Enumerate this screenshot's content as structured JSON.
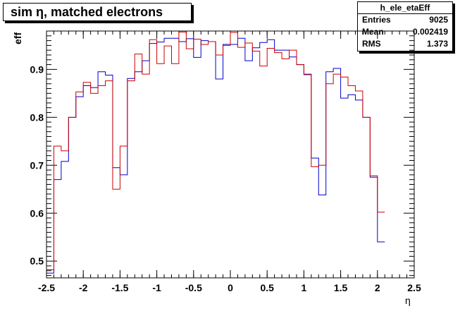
{
  "title": "sim η,  matched electrons",
  "stats": {
    "name": "h_ele_etaEff",
    "rows": [
      {
        "label": "Entries",
        "value": "9025"
      },
      {
        "label": "Mean",
        "value": "0.002419"
      },
      {
        "label": "RMS",
        "value": "1.373"
      }
    ]
  },
  "chart_data": {
    "type": "line",
    "style": "step",
    "xlabel": "η",
    "ylabel": "eff",
    "xlim": [
      -2.5,
      2.5
    ],
    "ylim": [
      0.465,
      0.98
    ],
    "x_ticks": [
      "-2.5",
      "-2",
      "-1.5",
      "-1",
      "-0.5",
      "0",
      "0.5",
      "1",
      "1.5",
      "2",
      "2.5"
    ],
    "y_ticks": [
      "0.5",
      "0.6",
      "0.7",
      "0.8",
      "0.9"
    ],
    "bin_edges_start": -2.5,
    "bin_width": 0.1,
    "grid": false,
    "series": [
      {
        "color": "#0000cc",
        "values": [
          0.475,
          0.67,
          0.708,
          0.8,
          0.843,
          0.866,
          0.862,
          0.895,
          0.888,
          0.695,
          0.68,
          0.881,
          0.895,
          0.918,
          0.954,
          0.957,
          0.965,
          0.965,
          0.958,
          0.964,
          0.925,
          0.96,
          0.958,
          0.88,
          0.952,
          0.952,
          0.965,
          0.918,
          0.945,
          0.956,
          0.962,
          0.94,
          0.94,
          0.926,
          0.91,
          0.889,
          0.715,
          0.638,
          0.895,
          0.902,
          0.84,
          0.847,
          0.836,
          0.8,
          0.675,
          0.54
        ]
      },
      {
        "color": "#cc0000",
        "values": [
          0.482,
          0.74,
          0.73,
          0.8,
          0.853,
          0.873,
          0.85,
          0.866,
          0.876,
          0.65,
          0.74,
          0.876,
          0.932,
          0.89,
          0.962,
          0.912,
          0.949,
          0.912,
          0.978,
          0.943,
          0.963,
          0.952,
          0.958,
          0.93,
          0.95,
          0.977,
          0.946,
          0.955,
          0.938,
          0.907,
          0.944,
          0.935,
          0.922,
          0.94,
          0.91,
          0.89,
          0.697,
          0.7,
          0.87,
          0.89,
          0.884,
          0.866,
          0.855,
          0.8,
          0.678,
          0.602
        ]
      }
    ]
  }
}
